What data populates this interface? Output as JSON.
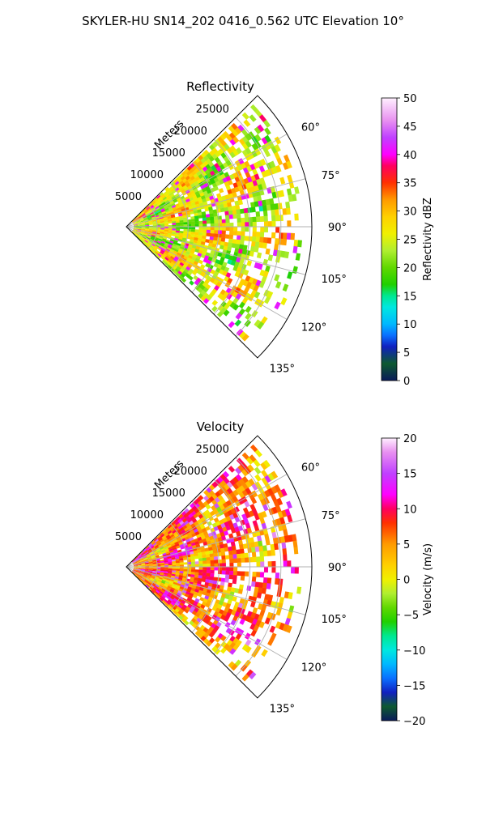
{
  "figure": {
    "suptitle": "SKYLER-HU  SN14_202  0416_0.562 UTC Elevation 10°"
  },
  "chart_data": [
    {
      "type": "heatmap",
      "subtype": "polar-sector radar PPI",
      "title": "Reflectivity",
      "radial_axis_label": "Meters",
      "radial_ticks": [
        5000,
        10000,
        15000,
        20000,
        25000
      ],
      "radial_tick_labels": [
        "5000",
        "10000",
        "15000",
        "20000",
        "25000"
      ],
      "rmax": 30000,
      "angle_ticks": [
        60,
        75,
        90,
        105,
        120,
        135
      ],
      "angle_tick_labels": [
        "60°",
        "75°",
        "90°",
        "105°",
        "120°",
        "135°"
      ],
      "azimuth_range": [
        45,
        135
      ],
      "grid": true,
      "colorbar": {
        "label": "Reflectivity dBZ",
        "min": 0,
        "max": 50,
        "ticks": [
          0,
          5,
          10,
          15,
          20,
          25,
          30,
          35,
          40,
          45,
          50
        ],
        "tick_labels": [
          "0",
          "5",
          "10",
          "15",
          "20",
          "25",
          "30",
          "35",
          "40",
          "45",
          "50"
        ],
        "colormap": "pyart_NWSRef",
        "color_stops": [
          [
            0,
            "#0a1a5a"
          ],
          [
            3,
            "#0d5a30"
          ],
          [
            6,
            "#1020c0"
          ],
          [
            8,
            "#0a70ff"
          ],
          [
            10,
            "#00b8ff"
          ],
          [
            13,
            "#00e8e0"
          ],
          [
            15,
            "#00e890"
          ],
          [
            17,
            "#20d000"
          ],
          [
            20,
            "#60d800"
          ],
          [
            23,
            "#b0ee30"
          ],
          [
            26,
            "#f0f000"
          ],
          [
            29,
            "#ffd000"
          ],
          [
            32,
            "#ff9a00"
          ],
          [
            35,
            "#ff3000"
          ],
          [
            38,
            "#ff0060"
          ],
          [
            40,
            "#ff00ff"
          ],
          [
            43,
            "#c040ff"
          ],
          [
            46,
            "#e890f0"
          ],
          [
            50,
            "#fff0ff"
          ]
        ]
      },
      "field_stats": {
        "dominant_range": [
          18,
          32
        ],
        "core_max": 40,
        "sparse_edge": true
      }
    },
    {
      "type": "heatmap",
      "subtype": "polar-sector radar PPI",
      "title": "Velocity",
      "radial_axis_label": "Meters",
      "radial_ticks": [
        5000,
        10000,
        15000,
        20000,
        25000
      ],
      "radial_tick_labels": [
        "5000",
        "10000",
        "15000",
        "20000",
        "25000"
      ],
      "rmax": 30000,
      "angle_ticks": [
        60,
        75,
        90,
        105,
        120,
        135
      ],
      "angle_tick_labels": [
        "60°",
        "75°",
        "90°",
        "105°",
        "120°",
        "135°"
      ],
      "azimuth_range": [
        45,
        135
      ],
      "grid": true,
      "colorbar": {
        "label": "Velocity (m/s)",
        "min": -20,
        "max": 20,
        "ticks": [
          -20,
          -15,
          -10,
          -5,
          0,
          5,
          10,
          15,
          20
        ],
        "tick_labels": [
          "−20",
          "−15",
          "−10",
          "−5",
          "0",
          "5",
          "10",
          "15",
          "20"
        ],
        "colormap": "pyart_BuDRd18",
        "color_stops": [
          [
            -20,
            "#0a1a5a"
          ],
          [
            -18,
            "#0d5a30"
          ],
          [
            -16,
            "#1020c0"
          ],
          [
            -14,
            "#0a70ff"
          ],
          [
            -12,
            "#00b8ff"
          ],
          [
            -10,
            "#00e8e0"
          ],
          [
            -8,
            "#00e890"
          ],
          [
            -6,
            "#20d000"
          ],
          [
            -4,
            "#60d800"
          ],
          [
            -2,
            "#b0ee30"
          ],
          [
            0,
            "#f0f000"
          ],
          [
            2,
            "#ffd000"
          ],
          [
            5,
            "#ff9a00"
          ],
          [
            8,
            "#ff3000"
          ],
          [
            10,
            "#ff0060"
          ],
          [
            12,
            "#ff00ff"
          ],
          [
            15,
            "#c040ff"
          ],
          [
            18,
            "#e890f0"
          ],
          [
            20,
            "#fff0ff"
          ]
        ]
      },
      "field_stats": {
        "dominant_range": [
          0,
          12
        ],
        "core_max": 16,
        "sparse_edge": true
      }
    }
  ]
}
